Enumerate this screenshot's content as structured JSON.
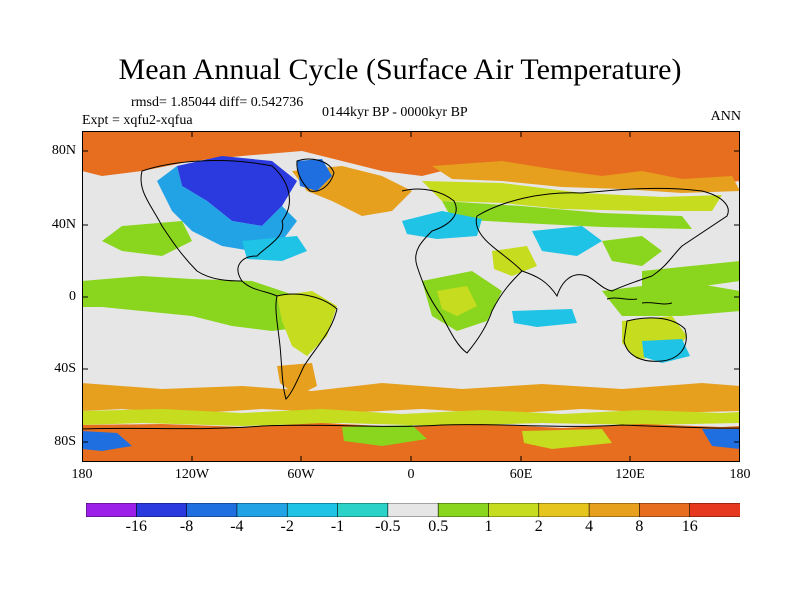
{
  "title": "Mean Annual Cycle (Surface Air Temperature)",
  "stats": "rmsd= 1.85044 diff= 0.542736",
  "expt": "Expt = xqfu2-xqfua",
  "period": "0144kyr BP - 0000kyr BP",
  "season": "ANN",
  "lat_labels": [
    "80N",
    "40N",
    "0",
    "40S",
    "80S"
  ],
  "lon_labels": [
    "180",
    "120W",
    "60W",
    "0",
    "60E",
    "120E",
    "180"
  ],
  "colorbar": {
    "labels": [
      "-16",
      "-8",
      "-4",
      "-2",
      "-1",
      "-0.5",
      "0.5",
      "1",
      "2",
      "4",
      "8",
      "16"
    ],
    "colors": [
      "#9b1fe8",
      "#2a3adf",
      "#1f6fe0",
      "#22a3e6",
      "#1ec3e6",
      "#2ad2c8",
      "#e6e6e6",
      "#8ad61e",
      "#c6dc1e",
      "#e6c61e",
      "#e6a01e",
      "#e66e1e",
      "#e6381e"
    ]
  },
  "palette": {
    "neutral": "#e6e6e6",
    "strong_cold": "#2a3adf",
    "cold": "#1f6fe0",
    "cool": "#22a3e6",
    "light_cool": "#1ec3e6",
    "teal": "#2ad2c8",
    "mild_warm": "#8ad61e",
    "warm": "#c6dc1e",
    "warmer": "#e6c61e",
    "hot": "#e6a01e",
    "very_hot": "#e66e1e",
    "extreme_hot": "#e6381e"
  }
}
